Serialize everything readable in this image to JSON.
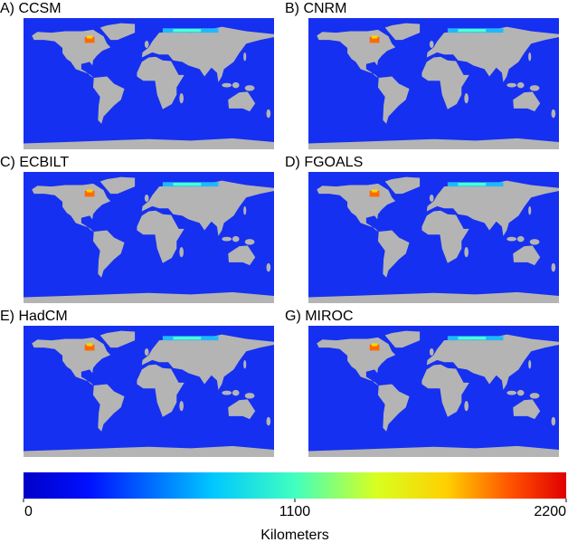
{
  "panels": [
    {
      "label": "A) CCSM"
    },
    {
      "label": "B) CNRM"
    },
    {
      "label": "C) ECBILT"
    },
    {
      "label": "D) FGOALS"
    },
    {
      "label": "E) HadCM"
    },
    {
      "label": "G) MIROC"
    }
  ],
  "colorbar": {
    "label": "Kilometers",
    "lim": [
      0,
      2200
    ],
    "ticks": [
      0,
      1100,
      2200
    ]
  }
}
